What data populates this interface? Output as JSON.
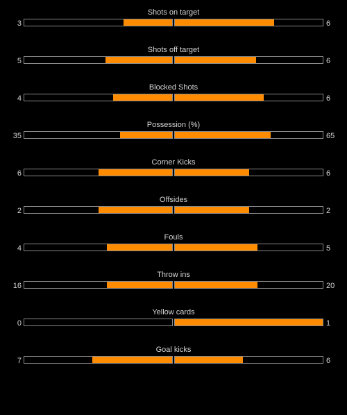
{
  "colors": {
    "background": "#000000",
    "bar_fill": "#ff8c00",
    "bar_border": "#8a8a8a",
    "text": "#d6d6d6"
  },
  "stats": [
    {
      "label": "Shots on target",
      "home": "3",
      "away": "6",
      "home_fill": 0.33,
      "away_fill": 0.67
    },
    {
      "label": "Shots off target",
      "home": "5",
      "away": "6",
      "home_fill": 0.45,
      "away_fill": 0.55
    },
    {
      "label": "Blocked Shots",
      "home": "4",
      "away": "6",
      "home_fill": 0.4,
      "away_fill": 0.6
    },
    {
      "label": "Possession (%)",
      "home": "35",
      "away": "65",
      "home_fill": 0.35,
      "away_fill": 0.65
    },
    {
      "label": "Corner Kicks",
      "home": "6",
      "away": "6",
      "home_fill": 0.5,
      "away_fill": 0.5
    },
    {
      "label": "Offsides",
      "home": "2",
      "away": "2",
      "home_fill": 0.5,
      "away_fill": 0.5
    },
    {
      "label": "Fouls",
      "home": "4",
      "away": "5",
      "home_fill": 0.44,
      "away_fill": 0.56
    },
    {
      "label": "Throw ins",
      "home": "16",
      "away": "20",
      "home_fill": 0.44,
      "away_fill": 0.56
    },
    {
      "label": "Yellow cards",
      "home": "0",
      "away": "1",
      "home_fill": 0.0,
      "away_fill": 1.0
    },
    {
      "label": "Goal kicks",
      "home": "7",
      "away": "6",
      "home_fill": 0.54,
      "away_fill": 0.46
    }
  ]
}
